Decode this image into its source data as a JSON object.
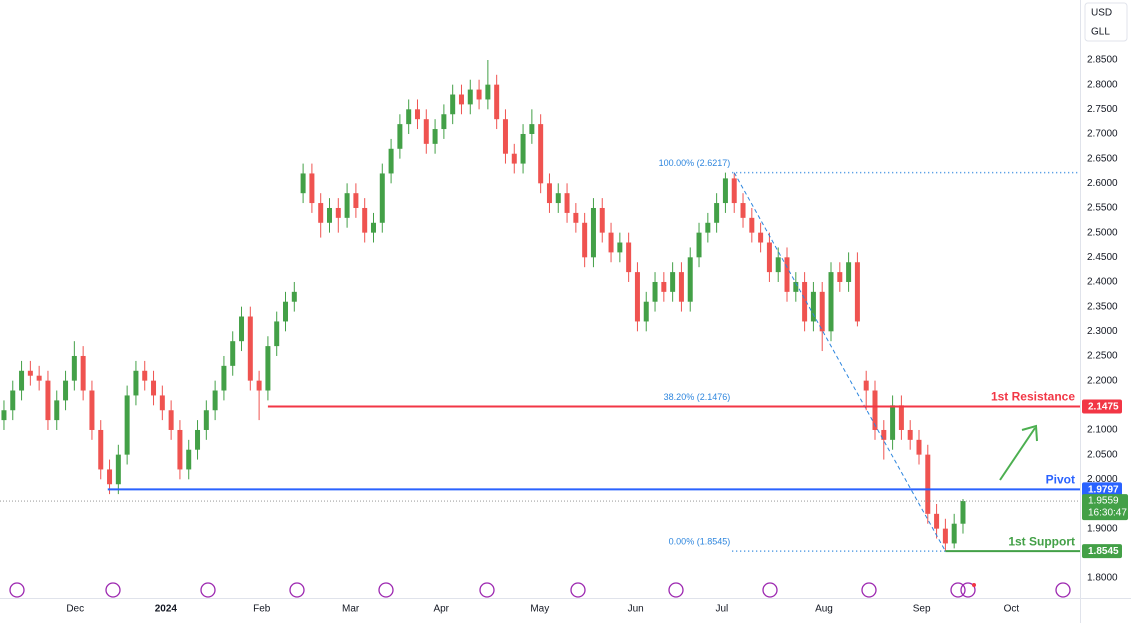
{
  "chart_data": {
    "type": "candlestick",
    "currency": [
      "USD",
      "GLL"
    ],
    "up_color": "#43a047",
    "down_color": "#ef5350",
    "grid": false,
    "xlim": [
      -0.45,
      122.3
    ],
    "xticks": [
      {
        "value": 8.1,
        "label": "Dec"
      },
      {
        "value": 18.4,
        "label": "2024"
      },
      {
        "value": 29.3,
        "label": "Feb"
      },
      {
        "value": 39.4,
        "label": "Mar"
      },
      {
        "value": 49.7,
        "label": "Apr"
      },
      {
        "value": 60.9,
        "label": "May"
      },
      {
        "value": 71.8,
        "label": "Jun"
      },
      {
        "value": 81.6,
        "label": "Jul"
      },
      {
        "value": 93.2,
        "label": "Aug"
      },
      {
        "value": 104.3,
        "label": "Sep"
      },
      {
        "value": 114.5,
        "label": "Oct"
      }
    ],
    "ylim": [
      1.7594,
      2.9716
    ],
    "yticks": [
      {
        "value": 2.85,
        "label": "2.8500"
      },
      {
        "value": 2.8,
        "label": "2.8000"
      },
      {
        "value": 2.75,
        "label": "2.7500"
      },
      {
        "value": 2.7,
        "label": "2.7000"
      },
      {
        "value": 2.65,
        "label": "2.6500"
      },
      {
        "value": 2.6,
        "label": "2.6000"
      },
      {
        "value": 2.55,
        "label": "2.5500"
      },
      {
        "value": 2.5,
        "label": "2.5000"
      },
      {
        "value": 2.45,
        "label": "2.4500"
      },
      {
        "value": 2.4,
        "label": "2.4000"
      },
      {
        "value": 2.35,
        "label": "2.3500"
      },
      {
        "value": 2.3,
        "label": "2.3000"
      },
      {
        "value": 2.25,
        "label": "2.2500"
      },
      {
        "value": 2.2,
        "label": "2.2000"
      },
      {
        "value": 2.1,
        "label": "2.1000"
      },
      {
        "value": 2.05,
        "label": "2.0500"
      },
      {
        "value": 2.0,
        "label": "2.0000"
      },
      {
        "value": 1.9,
        "label": "1.9000"
      },
      {
        "value": 1.8,
        "label": "1.8000"
      }
    ],
    "open": [
      2.12,
      2.14,
      2.18,
      2.22,
      2.21,
      2.2,
      2.12,
      2.16,
      2.2,
      2.25,
      2.18,
      2.1,
      2.02,
      1.99,
      2.05,
      2.17,
      2.22,
      2.2,
      2.17,
      2.14,
      2.1,
      2.02,
      2.06,
      2.1,
      2.14,
      2.18,
      2.23,
      2.28,
      2.33,
      2.2,
      2.18,
      2.27,
      2.32,
      2.36,
      2.58,
      2.62,
      2.56,
      2.52,
      2.55,
      2.53,
      2.58,
      2.55,
      2.5,
      2.52,
      2.62,
      2.67,
      2.72,
      2.75,
      2.73,
      2.68,
      2.71,
      2.74,
      2.78,
      2.76,
      2.79,
      2.77,
      2.8,
      2.73,
      2.66,
      2.64,
      2.7,
      2.72,
      2.6,
      2.56,
      2.58,
      2.54,
      2.52,
      2.45,
      2.55,
      2.5,
      2.46,
      2.48,
      2.42,
      2.32,
      2.36,
      2.4,
      2.38,
      2.42,
      2.36,
      2.45,
      2.5,
      2.52,
      2.56,
      2.61,
      2.56,
      2.53,
      2.5,
      2.48,
      2.42,
      2.45,
      2.38,
      2.4,
      2.32,
      2.38,
      2.3,
      2.42,
      2.4,
      2.44,
      2.2,
      2.18,
      2.1,
      2.08,
      2.15,
      2.1,
      2.08,
      2.05,
      1.93,
      1.9,
      1.87,
      1.91
    ],
    "high": [
      2.16,
      2.2,
      2.24,
      2.24,
      2.23,
      2.22,
      2.18,
      2.22,
      2.28,
      2.27,
      2.2,
      2.12,
      2.04,
      2.07,
      2.19,
      2.24,
      2.24,
      2.22,
      2.19,
      2.16,
      2.12,
      2.08,
      2.12,
      2.16,
      2.2,
      2.25,
      2.3,
      2.35,
      2.35,
      2.22,
      2.29,
      2.34,
      2.38,
      2.4,
      2.64,
      2.64,
      2.58,
      2.57,
      2.57,
      2.6,
      2.6,
      2.57,
      2.54,
      2.64,
      2.69,
      2.74,
      2.77,
      2.77,
      2.75,
      2.73,
      2.76,
      2.8,
      2.8,
      2.81,
      2.81,
      2.85,
      2.82,
      2.75,
      2.68,
      2.72,
      2.75,
      2.74,
      2.62,
      2.6,
      2.6,
      2.56,
      2.54,
      2.57,
      2.57,
      2.52,
      2.5,
      2.5,
      2.44,
      2.38,
      2.42,
      2.42,
      2.44,
      2.44,
      2.47,
      2.52,
      2.54,
      2.58,
      2.6217,
      2.62,
      2.58,
      2.55,
      2.52,
      2.5,
      2.47,
      2.47,
      2.42,
      2.42,
      2.4,
      2.4,
      2.44,
      2.44,
      2.46,
      2.46,
      2.22,
      2.2,
      2.12,
      2.17,
      2.17,
      2.12,
      2.1,
      2.07,
      1.95,
      1.92,
      1.93,
      1.96
    ],
    "low": [
      2.1,
      2.12,
      2.16,
      2.19,
      2.18,
      2.1,
      2.1,
      2.14,
      2.18,
      2.16,
      2.08,
      2.0,
      1.97,
      1.97,
      2.03,
      2.15,
      2.18,
      2.15,
      2.12,
      2.08,
      2.0,
      2.0,
      2.04,
      2.08,
      2.12,
      2.16,
      2.21,
      2.26,
      2.18,
      2.12,
      2.16,
      2.25,
      2.3,
      2.34,
      2.56,
      2.54,
      2.49,
      2.5,
      2.5,
      2.51,
      2.53,
      2.48,
      2.48,
      2.5,
      2.6,
      2.65,
      2.7,
      2.71,
      2.66,
      2.66,
      2.69,
      2.72,
      2.74,
      2.74,
      2.75,
      2.75,
      2.71,
      2.64,
      2.62,
      2.62,
      2.68,
      2.58,
      2.54,
      2.54,
      2.52,
      2.5,
      2.43,
      2.43,
      2.48,
      2.44,
      2.44,
      2.4,
      2.3,
      2.3,
      2.34,
      2.36,
      2.36,
      2.34,
      2.34,
      2.43,
      2.48,
      2.5,
      2.54,
      2.54,
      2.51,
      2.48,
      2.46,
      2.4,
      2.4,
      2.36,
      2.36,
      2.3,
      2.3,
      2.26,
      2.28,
      2.38,
      2.38,
      2.31,
      2.14,
      2.08,
      2.04,
      2.06,
      2.08,
      2.06,
      2.03,
      1.91,
      1.88,
      1.8545,
      1.86,
      1.89
    ],
    "close": [
      2.14,
      2.18,
      2.22,
      2.21,
      2.2,
      2.12,
      2.16,
      2.2,
      2.25,
      2.18,
      2.1,
      2.02,
      1.99,
      2.05,
      2.17,
      2.22,
      2.2,
      2.17,
      2.14,
      2.1,
      2.02,
      2.06,
      2.1,
      2.14,
      2.18,
      2.23,
      2.28,
      2.33,
      2.2,
      2.18,
      2.27,
      2.32,
      2.36,
      2.38,
      2.62,
      2.56,
      2.52,
      2.55,
      2.53,
      2.58,
      2.55,
      2.5,
      2.52,
      2.62,
      2.67,
      2.72,
      2.75,
      2.73,
      2.68,
      2.71,
      2.74,
      2.78,
      2.76,
      2.79,
      2.77,
      2.8,
      2.73,
      2.66,
      2.64,
      2.7,
      2.72,
      2.6,
      2.56,
      2.58,
      2.54,
      2.52,
      2.45,
      2.55,
      2.5,
      2.46,
      2.48,
      2.42,
      2.32,
      2.36,
      2.4,
      2.38,
      2.42,
      2.36,
      2.45,
      2.5,
      2.52,
      2.56,
      2.61,
      2.56,
      2.53,
      2.5,
      2.48,
      2.42,
      2.45,
      2.38,
      2.4,
      2.32,
      2.38,
      2.3,
      2.42,
      2.4,
      2.44,
      2.32,
      2.18,
      2.1,
      2.08,
      2.15,
      2.1,
      2.08,
      2.05,
      1.93,
      1.9,
      1.87,
      1.91,
      1.9559
    ],
    "levels": [
      {
        "name": "1st Resistance",
        "value": 2.1475,
        "from": 30,
        "color": "#f23645"
      },
      {
        "name": "Pivot",
        "value": 1.9797,
        "from": 11.8,
        "color": "#2962ff"
      },
      {
        "name": "1st Support",
        "value": 1.8545,
        "from": 107,
        "color": "#43a047"
      }
    ],
    "fib": {
      "from": 83,
      "to": 107,
      "color": "#2e86de",
      "levels": [
        {
          "label": "100.00% (2.6217)",
          "value": 2.6217
        },
        {
          "label": "38.20% (2.1476)",
          "value": 2.1476
        },
        {
          "label": "0.00% (1.8545)",
          "value": 1.8545
        }
      ]
    },
    "last_price": {
      "value": 1.9559,
      "countdown": "16:30:47",
      "color": "#43a047"
    }
  }
}
